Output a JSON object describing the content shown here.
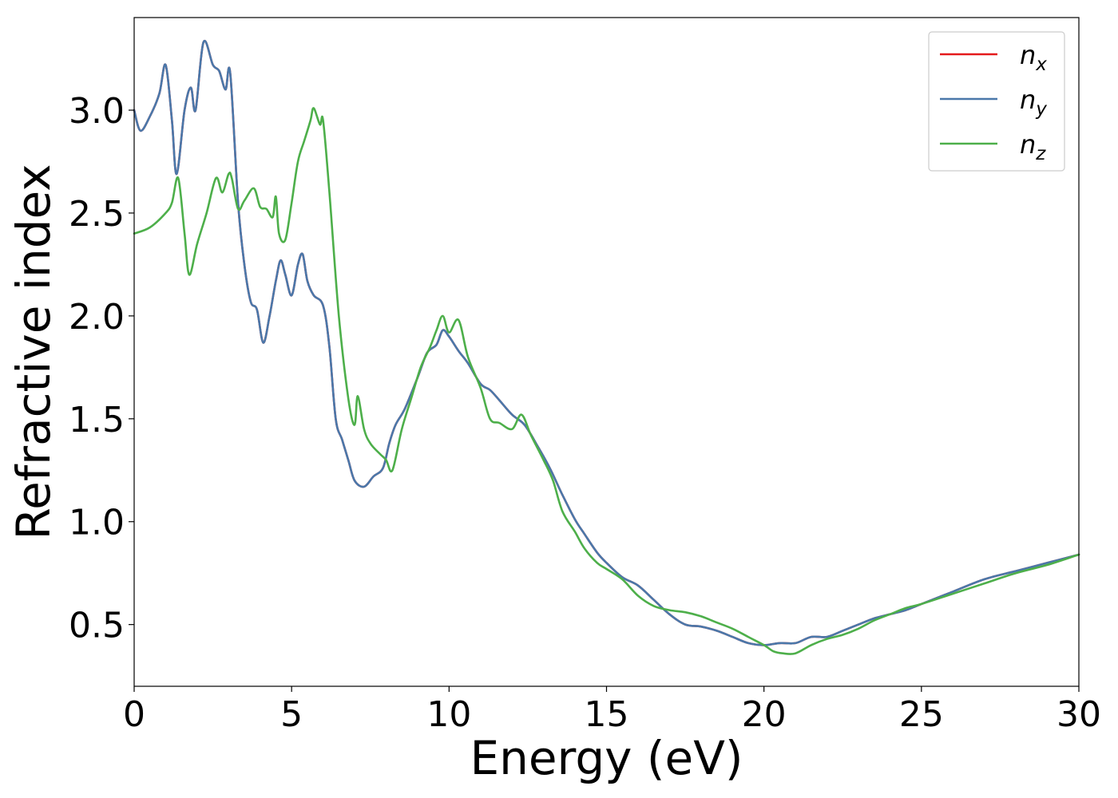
{
  "chart_data": {
    "type": "line",
    "title": "",
    "xlabel": "Energy (eV)",
    "ylabel": "Refractive index",
    "xlim": [
      0,
      30
    ],
    "ylim": [
      0.2,
      3.45
    ],
    "x_ticks": [
      0,
      5,
      10,
      15,
      20,
      25,
      30
    ],
    "x_tick_labels": [
      "0",
      "5",
      "10",
      "15",
      "20",
      "25",
      "30"
    ],
    "y_ticks": [
      0.5,
      1.0,
      1.5,
      2.0,
      2.5,
      3.0
    ],
    "y_tick_labels": [
      "0.5",
      "1.0",
      "1.5",
      "2.0",
      "2.5",
      "3.0"
    ],
    "grid": false,
    "legend_position": "top-right",
    "series": [
      {
        "name": "n_x",
        "label_base": "n",
        "label_sub": "x",
        "color": "#e41a1c",
        "x": [
          0,
          0.2,
          0.5,
          0.8,
          1.0,
          1.2,
          1.35,
          1.6,
          1.8,
          1.95,
          2.2,
          2.5,
          2.7,
          2.9,
          3.05,
          3.3,
          3.5,
          3.7,
          3.9,
          4.1,
          4.3,
          4.5,
          4.65,
          4.8,
          5.0,
          5.2,
          5.35,
          5.5,
          5.7,
          6.0,
          6.2,
          6.4,
          6.6,
          6.8,
          7.0,
          7.3,
          7.6,
          7.9,
          8.1,
          8.3,
          8.6,
          9.0,
          9.3,
          9.6,
          9.8,
          10.0,
          10.3,
          10.6,
          11.0,
          11.3,
          11.6,
          12.0,
          12.4,
          12.8,
          13.2,
          13.6,
          14.0,
          14.3,
          14.7,
          15.0,
          15.5,
          16.0,
          16.5,
          17.0,
          17.5,
          18.0,
          18.5,
          19.0,
          19.5,
          20.0,
          20.5,
          21.0,
          21.5,
          22.0,
          22.5,
          23.0,
          23.5,
          24.0,
          24.5,
          25.0,
          26.0,
          27.0,
          28.0,
          29.0,
          30.0
        ],
        "y": [
          3.0,
          2.9,
          2.97,
          3.08,
          3.22,
          2.95,
          2.69,
          3.0,
          3.11,
          3.0,
          3.33,
          3.22,
          3.19,
          3.1,
          3.18,
          2.55,
          2.25,
          2.07,
          2.03,
          1.87,
          2.0,
          2.17,
          2.27,
          2.2,
          2.1,
          2.25,
          2.3,
          2.17,
          2.1,
          2.05,
          1.85,
          1.5,
          1.4,
          1.3,
          1.2,
          1.17,
          1.22,
          1.26,
          1.38,
          1.47,
          1.55,
          1.7,
          1.82,
          1.86,
          1.93,
          1.9,
          1.83,
          1.77,
          1.67,
          1.64,
          1.59,
          1.52,
          1.47,
          1.37,
          1.26,
          1.13,
          1.01,
          0.94,
          0.85,
          0.8,
          0.73,
          0.69,
          0.62,
          0.55,
          0.5,
          0.49,
          0.47,
          0.44,
          0.41,
          0.4,
          0.41,
          0.41,
          0.44,
          0.44,
          0.47,
          0.5,
          0.53,
          0.55,
          0.57,
          0.6,
          0.66,
          0.72,
          0.76,
          0.8,
          0.84
        ]
      },
      {
        "name": "n_y",
        "label_base": "n",
        "label_sub": "y",
        "color": "#4a78aa",
        "x": [
          0,
          0.2,
          0.5,
          0.8,
          1.0,
          1.2,
          1.35,
          1.6,
          1.8,
          1.95,
          2.2,
          2.5,
          2.7,
          2.9,
          3.05,
          3.3,
          3.5,
          3.7,
          3.9,
          4.1,
          4.3,
          4.5,
          4.65,
          4.8,
          5.0,
          5.2,
          5.35,
          5.5,
          5.7,
          6.0,
          6.2,
          6.4,
          6.6,
          6.8,
          7.0,
          7.3,
          7.6,
          7.9,
          8.1,
          8.3,
          8.6,
          9.0,
          9.3,
          9.6,
          9.8,
          10.0,
          10.3,
          10.6,
          11.0,
          11.3,
          11.6,
          12.0,
          12.4,
          12.8,
          13.2,
          13.6,
          14.0,
          14.3,
          14.7,
          15.0,
          15.5,
          16.0,
          16.5,
          17.0,
          17.5,
          18.0,
          18.5,
          19.0,
          19.5,
          20.0,
          20.5,
          21.0,
          21.5,
          22.0,
          22.5,
          23.0,
          23.5,
          24.0,
          24.5,
          25.0,
          26.0,
          27.0,
          28.0,
          29.0,
          30.0
        ],
        "y": [
          3.0,
          2.9,
          2.97,
          3.08,
          3.22,
          2.95,
          2.69,
          3.0,
          3.11,
          3.0,
          3.33,
          3.22,
          3.19,
          3.1,
          3.18,
          2.55,
          2.25,
          2.07,
          2.03,
          1.87,
          2.0,
          2.17,
          2.27,
          2.2,
          2.1,
          2.25,
          2.3,
          2.17,
          2.1,
          2.05,
          1.85,
          1.5,
          1.4,
          1.3,
          1.2,
          1.17,
          1.22,
          1.26,
          1.38,
          1.47,
          1.55,
          1.7,
          1.82,
          1.86,
          1.93,
          1.9,
          1.83,
          1.77,
          1.67,
          1.64,
          1.59,
          1.52,
          1.47,
          1.37,
          1.26,
          1.13,
          1.01,
          0.94,
          0.85,
          0.8,
          0.73,
          0.69,
          0.62,
          0.55,
          0.5,
          0.49,
          0.47,
          0.44,
          0.41,
          0.4,
          0.41,
          0.41,
          0.44,
          0.44,
          0.47,
          0.5,
          0.53,
          0.55,
          0.57,
          0.6,
          0.66,
          0.72,
          0.76,
          0.8,
          0.84
        ]
      },
      {
        "name": "n_z",
        "label_base": "n",
        "label_sub": "z",
        "color": "#4daf4a",
        "x": [
          0,
          0.5,
          1.0,
          1.2,
          1.4,
          1.6,
          1.75,
          2.0,
          2.3,
          2.6,
          2.8,
          3.0,
          3.1,
          3.3,
          3.5,
          3.8,
          4.0,
          4.2,
          4.4,
          4.5,
          4.6,
          4.8,
          5.0,
          5.2,
          5.4,
          5.6,
          5.7,
          5.9,
          6.0,
          6.2,
          6.5,
          6.8,
          7.0,
          7.1,
          7.3,
          7.5,
          7.8,
          8.0,
          8.2,
          8.5,
          8.8,
          9.1,
          9.4,
          9.6,
          9.8,
          10.0,
          10.3,
          10.6,
          11.0,
          11.3,
          11.6,
          12.0,
          12.3,
          12.6,
          13.0,
          13.3,
          13.6,
          14.0,
          14.3,
          14.7,
          15.0,
          15.5,
          16.0,
          16.5,
          17.0,
          17.5,
          18.0,
          18.5,
          19.0,
          19.5,
          20.0,
          20.3,
          20.6,
          21.0,
          21.5,
          22.0,
          22.5,
          23.0,
          23.5,
          24.0,
          24.5,
          25.0,
          26.0,
          27.0,
          28.0,
          29.0,
          30.0
        ],
        "y": [
          2.4,
          2.43,
          2.5,
          2.55,
          2.67,
          2.4,
          2.2,
          2.35,
          2.5,
          2.67,
          2.6,
          2.69,
          2.67,
          2.52,
          2.56,
          2.62,
          2.53,
          2.52,
          2.48,
          2.58,
          2.4,
          2.37,
          2.55,
          2.75,
          2.85,
          2.95,
          3.01,
          2.93,
          2.95,
          2.6,
          2.0,
          1.6,
          1.47,
          1.61,
          1.45,
          1.38,
          1.33,
          1.3,
          1.25,
          1.45,
          1.6,
          1.75,
          1.85,
          1.93,
          2.0,
          1.92,
          1.98,
          1.8,
          1.65,
          1.5,
          1.48,
          1.45,
          1.52,
          1.42,
          1.3,
          1.2,
          1.05,
          0.95,
          0.87,
          0.8,
          0.77,
          0.72,
          0.64,
          0.59,
          0.57,
          0.56,
          0.54,
          0.51,
          0.48,
          0.44,
          0.4,
          0.37,
          0.36,
          0.36,
          0.4,
          0.43,
          0.45,
          0.48,
          0.52,
          0.55,
          0.58,
          0.6,
          0.65,
          0.7,
          0.75,
          0.79,
          0.84
        ]
      }
    ]
  }
}
